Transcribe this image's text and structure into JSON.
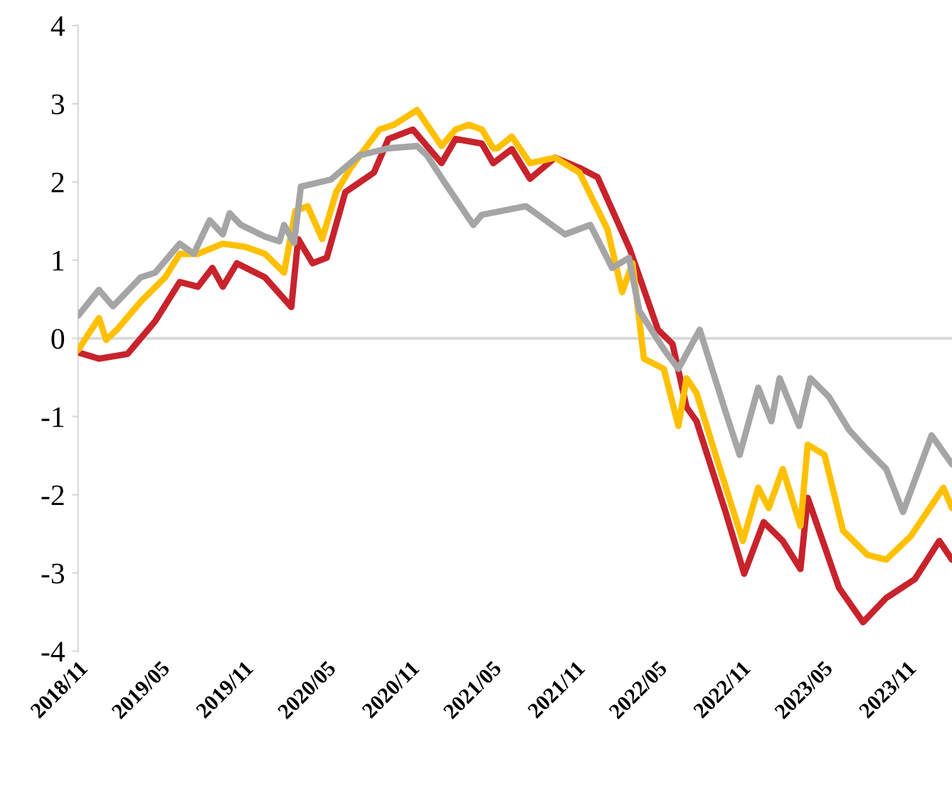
{
  "chart_data": {
    "type": "line",
    "xlim": [
      "2018-11-01",
      "2024-02-09"
    ],
    "ylim": [
      -4,
      4
    ],
    "yticks": [
      -4,
      -3,
      -2,
      -1,
      0,
      1,
      2,
      3,
      4
    ],
    "xticks": [
      {
        "value": "2018-11-01",
        "label": "2018/11"
      },
      {
        "value": "2019-05-01",
        "label": "2019/05"
      },
      {
        "value": "2019-11-01",
        "label": "2019/11"
      },
      {
        "value": "2020-05-01",
        "label": "2020/05"
      },
      {
        "value": "2020-11-01",
        "label": "2020/11"
      },
      {
        "value": "2021-05-01",
        "label": "2021/05"
      },
      {
        "value": "2021-11-01",
        "label": "2021/11"
      },
      {
        "value": "2022-05-01",
        "label": "2022/05"
      },
      {
        "value": "2022-11-01",
        "label": "2022/11"
      },
      {
        "value": "2023-05-01",
        "label": "2023/05"
      },
      {
        "value": "2023-11-01",
        "label": "2023/11"
      }
    ],
    "ref_lines": [
      {
        "axis": "y",
        "value": 0,
        "color": "#d9d9d9"
      }
    ],
    "grid": false,
    "legend": false,
    "marker": "none",
    "line_style": "solid",
    "series": [
      {
        "color": "#c8232c",
        "x": [
          "2018-11-01",
          "2018-12-17",
          "2019-02-18",
          "2019-04-20",
          "2019-06-13",
          "2019-07-23",
          "2019-08-24",
          "2019-09-16",
          "2019-10-17",
          "2019-12-18",
          "2020-02-14",
          "2020-02-29",
          "2020-04-01",
          "2020-05-02",
          "2020-06-12",
          "2020-08-14",
          "2020-09-15",
          "2020-11-08",
          "2021-01-10",
          "2021-02-10",
          "2021-04-09",
          "2021-05-04",
          "2021-06-14",
          "2021-07-24",
          "2021-09-17",
          "2021-11-10",
          "2021-12-20",
          "2022-03-01",
          "2022-05-02",
          "2022-06-03",
          "2022-07-04",
          "2022-07-26",
          "2022-09-28",
          "2022-11-08",
          "2022-12-21",
          "2023-02-01",
          "2023-03-12",
          "2023-03-28",
          "2023-06-05",
          "2023-07-28",
          "2023-09-17",
          "2023-11-19",
          "2024-01-12",
          "2024-02-09"
        ],
        "values": [
          -0.18,
          -0.26,
          -0.2,
          0.22,
          0.72,
          0.66,
          0.9,
          0.66,
          0.96,
          0.78,
          0.4,
          1.27,
          0.96,
          1.03,
          1.87,
          2.12,
          2.55,
          2.67,
          2.24,
          2.55,
          2.49,
          2.24,
          2.42,
          2.04,
          2.31,
          2.18,
          2.06,
          1.14,
          0.11,
          -0.07,
          -0.88,
          -1.06,
          -2.22,
          -3.01,
          -2.35,
          -2.59,
          -2.95,
          -2.04,
          -3.19,
          -3.63,
          -3.32,
          -3.08,
          -2.59,
          -2.83
        ]
      },
      {
        "color": "#ffc000",
        "x": [
          "2018-11-01",
          "2018-12-17",
          "2019-01-02",
          "2019-01-27",
          "2019-03-19",
          "2019-05-12",
          "2019-06-13",
          "2019-07-23",
          "2019-09-16",
          "2019-11-05",
          "2019-12-18",
          "2020-01-29",
          "2020-02-23",
          "2020-03-21",
          "2020-04-22",
          "2020-05-23",
          "2020-06-24",
          "2020-08-26",
          "2020-09-27",
          "2020-11-17",
          "2021-01-10",
          "2021-02-10",
          "2021-03-11",
          "2021-04-09",
          "2021-05-04",
          "2021-05-13",
          "2021-06-14",
          "2021-07-24",
          "2021-09-17",
          "2021-11-10",
          "2022-01-11",
          "2022-02-12",
          "2022-03-07",
          "2022-04-01",
          "2022-05-15",
          "2022-06-16",
          "2022-07-04",
          "2022-07-26",
          "2022-09-06",
          "2022-11-05",
          "2022-12-09",
          "2023-01-01",
          "2023-02-01",
          "2023-03-12",
          "2023-03-28",
          "2023-05-04",
          "2023-06-14",
          "2023-08-07",
          "2023-09-17",
          "2023-11-10",
          "2024-01-21",
          "2024-02-09"
        ],
        "values": [
          -0.15,
          0.26,
          -0.02,
          0.12,
          0.47,
          0.78,
          1.08,
          1.08,
          1.21,
          1.17,
          1.08,
          0.84,
          1.63,
          1.69,
          1.27,
          1.87,
          2.18,
          2.67,
          2.73,
          2.92,
          2.46,
          2.67,
          2.73,
          2.67,
          2.43,
          2.43,
          2.58,
          2.24,
          2.31,
          2.12,
          1.39,
          0.59,
          0.96,
          -0.26,
          -0.39,
          -1.12,
          -0.51,
          -0.7,
          -1.49,
          -2.59,
          -1.91,
          -2.17,
          -1.67,
          -2.4,
          -1.36,
          -1.49,
          -2.46,
          -2.77,
          -2.83,
          -2.53,
          -1.91,
          -2.17
        ]
      },
      {
        "color": "#a5a5a5",
        "x": [
          "2018-11-01",
          "2018-12-17",
          "2019-01-17",
          "2019-03-19",
          "2019-04-20",
          "2019-06-13",
          "2019-07-14",
          "2019-08-18",
          "2019-09-16",
          "2019-10-01",
          "2019-10-26",
          "2019-12-18",
          "2020-01-19",
          "2020-01-29",
          "2020-02-20",
          "2020-03-06",
          "2020-05-11",
          "2020-07-13",
          "2020-09-15",
          "2020-11-17",
          "2020-12-09",
          "2021-01-16",
          "2021-03-21",
          "2021-04-09",
          "2021-07-15",
          "2021-10-09",
          "2021-12-04",
          "2022-01-21",
          "2022-02-27",
          "2022-03-22",
          "2022-05-15",
          "2022-06-16",
          "2022-08-02",
          "2022-09-28",
          "2022-10-29",
          "2022-12-09",
          "2023-01-07",
          "2023-01-25",
          "2023-03-09",
          "2023-04-03",
          "2023-05-14",
          "2023-06-27",
          "2023-08-07",
          "2023-09-17",
          "2023-10-24",
          "2023-12-26",
          "2024-02-09"
        ],
        "values": [
          0.29,
          0.62,
          0.41,
          0.78,
          0.84,
          1.21,
          1.08,
          1.51,
          1.33,
          1.6,
          1.45,
          1.3,
          1.24,
          1.45,
          1.22,
          1.94,
          2.03,
          2.34,
          2.43,
          2.46,
          2.34,
          2.0,
          1.45,
          1.58,
          1.69,
          1.33,
          1.45,
          0.9,
          1.03,
          0.35,
          -0.14,
          -0.39,
          0.11,
          -0.94,
          -1.49,
          -0.63,
          -1.06,
          -0.51,
          -1.12,
          -0.51,
          -0.75,
          -1.17,
          -1.43,
          -1.67,
          -2.22,
          -1.24,
          -1.61
        ]
      }
    ]
  }
}
